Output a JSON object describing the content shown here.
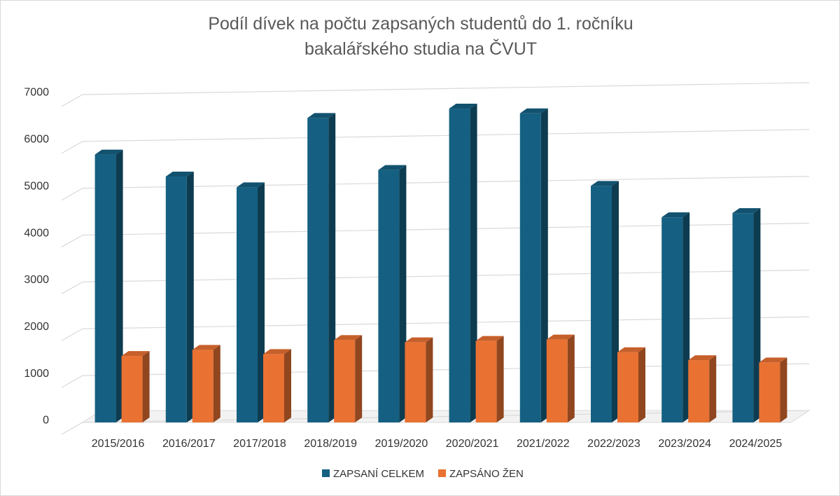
{
  "chart_data": {
    "type": "bar",
    "title_lines": [
      "Podíl dívek na počtu zapsaných studentů do 1. ročníku",
      "bakalářského studia na ČVUT"
    ],
    "categories": [
      "2015/2016",
      "2016/2017",
      "2017/2018",
      "2018/2019",
      "2019/2020",
      "2020/2021",
      "2021/2022",
      "2022/2023",
      "2023/2024",
      "2024/2025"
    ],
    "series": [
      {
        "name": "ZAPSANÍ CELKEM",
        "color": "#156082",
        "values": [
          5720,
          5250,
          5020,
          6500,
          5390,
          6700,
          6600,
          5050,
          4380,
          4470
        ]
      },
      {
        "name": "ZAPSÁNO ŽEN",
        "color": "#E97132",
        "values": [
          1420,
          1550,
          1460,
          1760,
          1710,
          1740,
          1770,
          1500,
          1330,
          1280
        ]
      }
    ],
    "yticks": [
      0,
      1000,
      2000,
      3000,
      4000,
      5000,
      6000,
      7000
    ],
    "ylim": [
      0,
      7000
    ],
    "grid": true,
    "legend_position": "bottom",
    "style": "3d-clustered-column"
  }
}
